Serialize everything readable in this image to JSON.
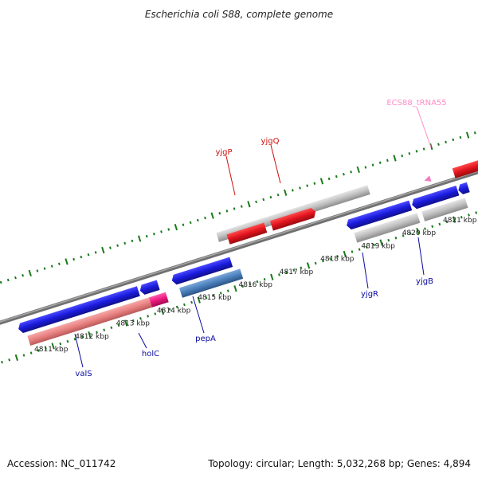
{
  "title": "Escherichia coli S88, complete genome",
  "footer": {
    "accession": "Accession: NC_011742",
    "summary": "Topology: circular; Length: 5,032,268 bp; Genes: 4,894"
  },
  "colors": {
    "forward_gene": "#1a1adc",
    "reverse_gene": "#e0141e",
    "pseudo_gene": "#bfbfbf",
    "coding_feature": "#e98080",
    "regulatory_feature": "#e8187a",
    "product_feature": "#4a7fbc",
    "trna": "#f07cc0",
    "tick": "#1a7a1a",
    "backbone": "#888888",
    "label_blue": "#0a0aa0",
    "label_red": "#d01010",
    "label_pink": "#ff8cc6"
  },
  "scale": {
    "unit": "kbp",
    "labels": [
      {
        "text": "4811 kbp"
      },
      {
        "text": "4812 kbp"
      },
      {
        "text": "4813 kbp"
      },
      {
        "text": "4814 kbp"
      },
      {
        "text": "4815 kbp"
      },
      {
        "text": "4816 kbp"
      },
      {
        "text": "4817 kbp"
      },
      {
        "text": "4818 kbp"
      },
      {
        "text": "4819 kbp"
      },
      {
        "text": "4820 kbp"
      },
      {
        "text": "4821 kbp"
      }
    ]
  },
  "genes": [
    {
      "name": "valS",
      "strand": "forward",
      "label_color": "label_blue"
    },
    {
      "name": "holC",
      "strand": "forward",
      "label_color": "label_blue"
    },
    {
      "name": "pepA",
      "strand": "forward",
      "label_color": "label_blue"
    },
    {
      "name": "yjgP",
      "strand": "reverse",
      "label_color": "label_red"
    },
    {
      "name": "yjgQ",
      "strand": "reverse",
      "label_color": "label_red"
    },
    {
      "name": "yjgR",
      "strand": "forward",
      "label_color": "label_blue"
    },
    {
      "name": "yjgB",
      "strand": "forward",
      "label_color": "label_blue"
    },
    {
      "name": "ECS88_tRNA55",
      "strand": "reverse",
      "label_color": "label_pink"
    }
  ]
}
